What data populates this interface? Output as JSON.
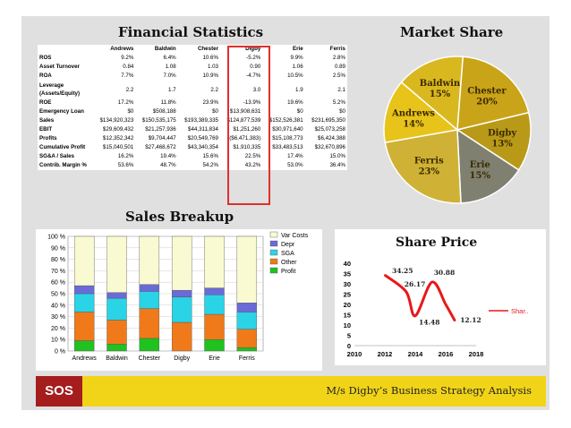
{
  "financial_statistics": {
    "title": "Financial Statistics",
    "columns": [
      "Andrews",
      "Baldwin",
      "Chester",
      "Digby",
      "Erie",
      "Ferris"
    ],
    "rows": [
      {
        "label": "ROS",
        "values": [
          "9.2%",
          "6.4%",
          "10.6%",
          "-5.2%",
          "9.9%",
          "2.8%"
        ]
      },
      {
        "label": "Asset Turnover",
        "values": [
          "0.84",
          "1.08",
          "1.03",
          "0.90",
          "1.06",
          "0.89"
        ]
      },
      {
        "label": "ROA",
        "values": [
          "7.7%",
          "7.0%",
          "10.9%",
          "-4.7%",
          "10.5%",
          "2.5%"
        ]
      },
      {
        "label": "Leverage (Assets/Equity)",
        "values": [
          "2.2",
          "1.7",
          "2.2",
          "3.0",
          "1.9",
          "2.1"
        ]
      },
      {
        "label": "ROE",
        "values": [
          "17.2%",
          "11.8%",
          "23.9%",
          "-13.9%",
          "19.6%",
          "5.2%"
        ]
      },
      {
        "label": "Emergency Loan",
        "values": [
          "$0",
          "$508,188",
          "$0",
          "$13,908,631",
          "$0",
          "$0"
        ]
      },
      {
        "label": "Sales",
        "values": [
          "$134,920,323",
          "$150,535,175",
          "$193,389,335",
          "$124,877,539",
          "$152,526,381",
          "$231,695,350"
        ]
      },
      {
        "label": "EBIT",
        "values": [
          "$29,609,432",
          "$21,257,936",
          "$44,311,834",
          "$1,251,260",
          "$30,971,640",
          "$25,073,258"
        ]
      },
      {
        "label": "Profits",
        "values": [
          "$12,352,342",
          "$9,704,447",
          "$20,549,769",
          "($6,471,383)",
          "$15,108,773",
          "$6,424,388"
        ]
      },
      {
        "label": "Cumulative Profit",
        "values": [
          "$15,040,501",
          "$27,468,672",
          "$43,340,354",
          "$1,910,335",
          "$33,483,513",
          "$32,670,896"
        ]
      },
      {
        "label": "SG&A / Sales",
        "values": [
          "16.2%",
          "19.4%",
          "15.6%",
          "22.5%",
          "17.4%",
          "15.0%"
        ]
      },
      {
        "label": "Contrib. Margin %",
        "values": [
          "53.6%",
          "48.7%",
          "54.2%",
          "43.2%",
          "53.0%",
          "36.4%"
        ]
      }
    ]
  },
  "market_share": {
    "title": "Market Share",
    "slices": [
      {
        "name": "Andrews",
        "pct": "14%",
        "value": 14,
        "color": "#e8c31a"
      },
      {
        "name": "Baldwin",
        "pct": "15%",
        "value": 15,
        "color": "#d9b81f"
      },
      {
        "name": "Chester",
        "pct": "20%",
        "value": 20,
        "color": "#c9a418"
      },
      {
        "name": "Digby",
        "pct": "13%",
        "value": 13,
        "color": "#b99a18"
      },
      {
        "name": "Erie",
        "pct": "15%",
        "value": 15,
        "color": "#808070"
      },
      {
        "name": "Ferris",
        "pct": "23%",
        "value": 23,
        "color": "#cfb235"
      }
    ]
  },
  "chart_data": [
    {
      "type": "bar",
      "stacked": true,
      "title": "Sales Breakup",
      "categories": [
        "Andrews",
        "Baldwin",
        "Chester",
        "Digby",
        "Erie",
        "Ferris"
      ],
      "ylim": [
        0,
        100
      ],
      "yticks": [
        "0 %",
        "10 %",
        "20 %",
        "30 %",
        "40 %",
        "50 %",
        "60 %",
        "70 %",
        "80 %",
        "90 %",
        "100 %"
      ],
      "series": [
        {
          "name": "Profit",
          "color": "#1fc21f",
          "values": [
            9,
            6,
            11,
            0,
            10,
            3
          ]
        },
        {
          "name": "Other",
          "color": "#f07a1a",
          "values": [
            25,
            21,
            26,
            25,
            22,
            16
          ]
        },
        {
          "name": "SGA",
          "color": "#2ad4e6",
          "values": [
            16,
            19,
            15,
            22,
            17,
            15
          ]
        },
        {
          "name": "Depr",
          "color": "#6a6ad8",
          "values": [
            7,
            5,
            6,
            6,
            6,
            8
          ]
        },
        {
          "name": "Var Costs",
          "color": "#fafad2",
          "values": [
            43,
            49,
            42,
            47,
            45,
            58
          ]
        }
      ],
      "legend_position": "right"
    },
    {
      "type": "line",
      "title": "Share Price",
      "x": [
        2012,
        2013.4,
        2014,
        2015.1,
        2016,
        2016.6
      ],
      "y": [
        34.25,
        26.17,
        14.48,
        30.88,
        20,
        12.12
      ],
      "data_labels": [
        "34.25",
        "26.17",
        "14.48",
        "30.88",
        "",
        "12.12"
      ],
      "series_name": "Shar..",
      "xlim": [
        2010,
        2018
      ],
      "ylim": [
        0,
        40
      ],
      "xticks": [
        "2010",
        "2012",
        "2014",
        "2016",
        "2018"
      ],
      "yticks": [
        "0",
        "5",
        "10",
        "15",
        "20",
        "25",
        "30",
        "35",
        "40"
      ],
      "line_color": "#e81818"
    }
  ],
  "footer": {
    "logo": "SOS",
    "text": "M/s Digby’s Business Strategy Analysis"
  }
}
